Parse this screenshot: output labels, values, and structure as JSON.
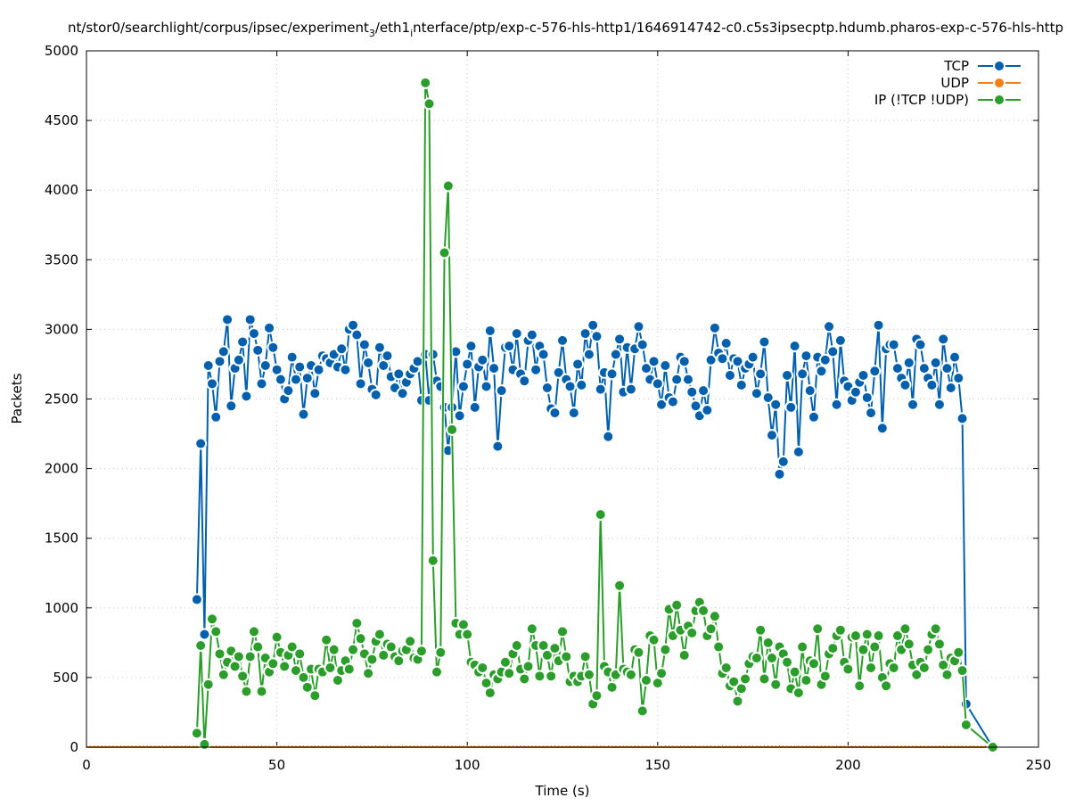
{
  "chart_data": {
    "type": "line",
    "title_parts": [
      "nt/stor0/searchlight/corpus/ipsec/experiment",
      "3",
      "/eth1",
      "i",
      "nterface/ptp/exp-c-576-hls-http1/1646914742-c0.c5s3ipsecptp.hdumb.pharos-exp-c-576-hls-http"
    ],
    "xlabel": "Time (s)",
    "ylabel": "Packets",
    "xlim": [
      0,
      250
    ],
    "ylim": [
      0,
      5000
    ],
    "xticks": [
      0,
      50,
      100,
      150,
      200,
      250
    ],
    "yticks": [
      0,
      500,
      1000,
      1500,
      2000,
      2500,
      3000,
      3500,
      4000,
      4500,
      5000
    ],
    "grid": true,
    "legend_position": "top-right",
    "x_start": 29,
    "x_step": 1,
    "series": [
      {
        "name": "TCP",
        "color": "#0060ad",
        "values": [
          1060,
          2180,
          810,
          2740,
          2610,
          2370,
          2770,
          2840,
          3070,
          2450,
          2720,
          2780,
          2910,
          2520,
          3070,
          2970,
          2850,
          2610,
          2740,
          3010,
          2870,
          2710,
          2640,
          2500,
          2560,
          2800,
          2640,
          2730,
          2390,
          2650,
          2740,
          2540,
          2710,
          2810,
          2790,
          2760,
          2820,
          2730,
          2860,
          2710,
          3000,
          3030,
          2960,
          2610,
          2890,
          2760,
          2570,
          2530,
          2870,
          2740,
          2810,
          2660,
          2580,
          2680,
          2540,
          2620,
          2680,
          2720,
          2770,
          2490,
          2820,
          2490,
          2820,
          2630,
          2590,
          2440,
          2130,
          2440,
          2840,
          2380,
          2590,
          2750,
          2880,
          2440,
          2730,
          2780,
          2590,
          2990,
          2720,
          2160,
          2560,
          2870,
          2880,
          2710,
          2970,
          2680,
          2630,
          2920,
          2960,
          2710,
          2880,
          2820,
          2580,
          2430,
          2400,
          2690,
          2920,
          2640,
          2590,
          2400,
          2750,
          2600,
          2970,
          2820,
          3030,
          2950,
          2570,
          2690,
          2230,
          2680,
          2820,
          2930,
          2550,
          2870,
          2570,
          2860,
          3020,
          2890,
          2720,
          2640,
          2770,
          2610,
          2460,
          2740,
          2510,
          2480,
          2640,
          2800,
          2770,
          2640,
          2550,
          2450,
          2380,
          2560,
          2420,
          2780,
          3010,
          2830,
          2790,
          2900,
          2670,
          2790,
          2770,
          2600,
          2720,
          2750,
          2800,
          2540,
          2680,
          2910,
          2510,
          2240,
          2460,
          1960,
          2050,
          2670,
          2440,
          2880,
          2120,
          2680,
          2810,
          2560,
          2370,
          2800,
          2700,
          2780,
          3020,
          2840,
          2460,
          2920,
          2630,
          2590,
          2490,
          2550,
          2620,
          2670,
          2510,
          2400,
          2700,
          3030,
          2290,
          2860,
          2890,
          2890,
          2720,
          2650,
          2600,
          2760,
          2460,
          2930,
          2890,
          2720,
          2650,
          2600,
          2760,
          2460,
          2930,
          2720,
          2580,
          2800,
          2650,
          2360,
          310
        ],
        "extra_points": [
          [
            238,
            0
          ]
        ]
      },
      {
        "name": "UDP",
        "color": "#f47f14",
        "constant": 0,
        "x_range": [
          0,
          238
        ]
      },
      {
        "name": "IP (!TCP  !UDP)",
        "color": "#2a9d2a",
        "values": [
          100,
          730,
          20,
          450,
          920,
          830,
          670,
          520,
          610,
          690,
          580,
          650,
          510,
          400,
          650,
          830,
          720,
          400,
          640,
          540,
          600,
          790,
          680,
          580,
          660,
          720,
          550,
          670,
          500,
          430,
          560,
          370,
          560,
          540,
          770,
          570,
          700,
          480,
          550,
          620,
          560,
          700,
          890,
          780,
          670,
          530,
          630,
          760,
          810,
          660,
          740,
          720,
          650,
          620,
          690,
          700,
          760,
          640,
          630,
          690,
          4770,
          4620,
          1340,
          540,
          680,
          3550,
          4030,
          2280,
          890,
          810,
          880,
          810,
          610,
          590,
          540,
          570,
          460,
          390,
          520,
          490,
          540,
          610,
          530,
          670,
          730,
          560,
          490,
          580,
          850,
          730,
          510,
          730,
          660,
          510,
          710,
          620,
          830,
          650,
          470,
          510,
          470,
          510,
          650,
          520,
          310,
          370,
          1670,
          580,
          540,
          430,
          520,
          1160,
          560,
          540,
          520,
          700,
          680,
          260,
          480,
          800,
          770,
          460,
          530,
          700,
          990,
          800,
          1020,
          840,
          660,
          870,
          820,
          980,
          1040,
          980,
          800,
          850,
          940,
          720,
          530,
          570,
          440,
          470,
          330,
          420,
          490,
          600,
          650,
          640,
          840,
          490,
          750,
          640,
          450,
          720,
          670,
          610,
          420,
          540,
          390,
          720,
          480,
          620,
          600,
          850,
          450,
          510,
          670,
          710,
          800,
          840,
          610,
          560,
          790,
          800,
          440,
          700,
          810,
          570,
          720,
          800,
          500,
          440,
          600,
          570,
          800,
          700,
          850,
          740,
          590,
          520,
          610,
          570,
          700,
          810,
          850,
          740,
          590,
          520,
          640,
          620,
          680,
          550,
          160
        ],
        "extra_points": [
          [
            238,
            0
          ]
        ]
      }
    ]
  }
}
